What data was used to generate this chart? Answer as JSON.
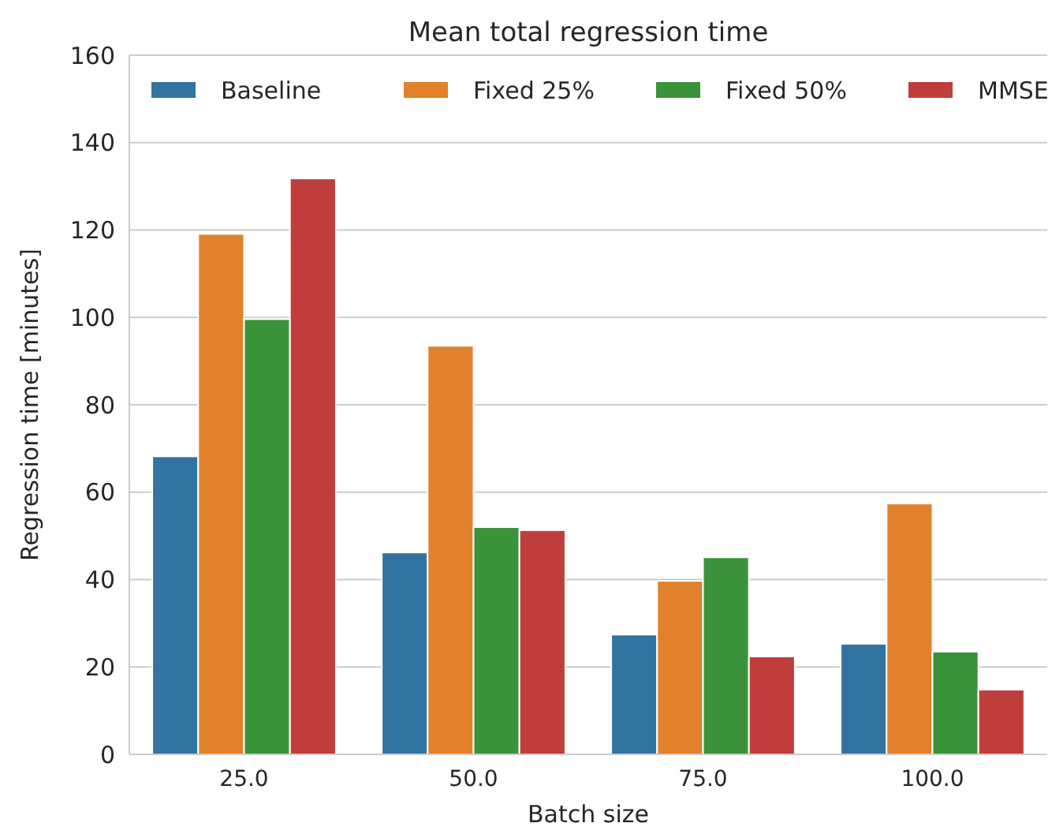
{
  "chart_data": {
    "type": "bar",
    "title": "Mean total regression time",
    "xlabel": "Batch size",
    "ylabel": "Regression time [minutes]",
    "categories": [
      "25.0",
      "50.0",
      "75.0",
      "100.0"
    ],
    "series": [
      {
        "name": "Baseline",
        "color": "#3274a1",
        "values": [
          68.2,
          46.2,
          27.4,
          25.3
        ]
      },
      {
        "name": "Fixed 25%",
        "color": "#e1812c",
        "values": [
          119.1,
          93.5,
          39.7,
          57.4
        ]
      },
      {
        "name": "Fixed 50%",
        "color": "#3a923a",
        "values": [
          99.6,
          52,
          45.1,
          23.5
        ]
      },
      {
        "name": "MMSE",
        "color": "#c03d3e",
        "values": [
          131.8,
          51.3,
          22.4,
          14.8
        ]
      }
    ],
    "ylim": [
      0,
      160
    ],
    "yticks": [
      0,
      20,
      40,
      60,
      80,
      100,
      120,
      140,
      160
    ],
    "grid": "y",
    "legend": "top"
  }
}
